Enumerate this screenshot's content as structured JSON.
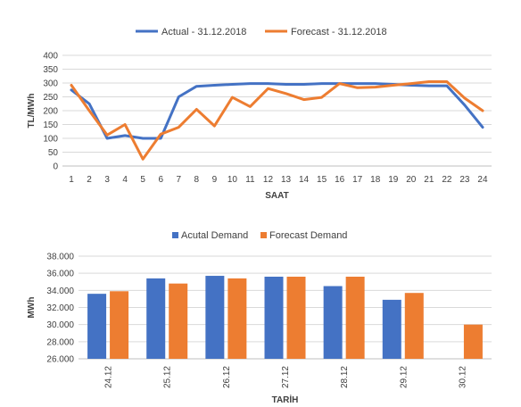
{
  "chart_data": [
    {
      "type": "line",
      "title": "",
      "xlabel": "SAAT",
      "ylabel": "TL/MWh",
      "x": [
        1,
        2,
        3,
        4,
        5,
        6,
        7,
        8,
        9,
        10,
        11,
        12,
        13,
        14,
        15,
        16,
        17,
        18,
        19,
        20,
        21,
        22,
        23,
        24
      ],
      "ylim": [
        0,
        400
      ],
      "yticks": [
        "0",
        "50",
        "100",
        "150",
        "200",
        "250",
        "300",
        "350",
        "400"
      ],
      "grid": true,
      "legend": "top",
      "series": [
        {
          "name": "Actual - 31.12.2018",
          "color": "#4472C4",
          "values": [
            275,
            225,
            100,
            110,
            100,
            100,
            250,
            288,
            292,
            295,
            298,
            298,
            295,
            295,
            298,
            298,
            298,
            298,
            295,
            292,
            290,
            290,
            220,
            140
          ]
        },
        {
          "name": "Forecast - 31.12.2018",
          "color": "#ED7D31",
          "values": [
            292,
            200,
            112,
            150,
            25,
            115,
            140,
            205,
            145,
            248,
            215,
            280,
            262,
            240,
            248,
            298,
            283,
            285,
            292,
            298,
            305,
            305,
            245,
            200
          ]
        }
      ]
    },
    {
      "type": "bar",
      "title": "",
      "xlabel": "TARİH",
      "ylabel": "MWh",
      "categories": [
        "24.12",
        "25.12",
        "26.12",
        "27.12",
        "28.12",
        "29.12",
        "30.12"
      ],
      "ylim": [
        26000,
        38000
      ],
      "yticks": [
        "26.000",
        "28.000",
        "30.000",
        "32.000",
        "34.000",
        "36.000",
        "38.000"
      ],
      "grid": true,
      "legend": "top",
      "series": [
        {
          "name": "Acutal Demand",
          "color": "#4472C4",
          "values": [
            33600,
            35400,
            35700,
            35600,
            34500,
            32900,
            null
          ]
        },
        {
          "name": "Forecast Demand",
          "color": "#ED7D31",
          "values": [
            33900,
            34800,
            35400,
            35600,
            35600,
            33700,
            30000
          ]
        }
      ]
    }
  ]
}
